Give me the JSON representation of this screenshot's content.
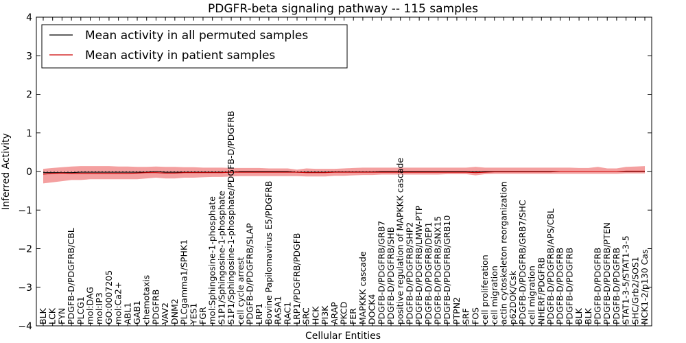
{
  "chart_data": {
    "type": "line",
    "title": "PDGFR-beta signaling pathway -- 115 samples",
    "xlabel": "Cellular Entities",
    "ylabel": "Inferred Activity",
    "ylim": [
      -4,
      4
    ],
    "yticks": [
      -4,
      -3,
      -2,
      -1,
      0,
      1,
      2,
      3,
      4
    ],
    "legend_position": "top-left",
    "grid": false,
    "categories": [
      "BLK",
      "LCK",
      "FYN",
      "PDGFB-D/PDGFRB/CBL",
      "PLCG1",
      "mol:DAG",
      "mol:IP3",
      "GO:0007205",
      "mol:Ca2+",
      "ABL1",
      "GAB1",
      "chemotaxis",
      "PDGFRB",
      "VAV2",
      "DNM2",
      "PLCgamma1/SPHK1",
      "YES1",
      "FGR",
      "mol:Sphingosine-1-phosphate",
      "S1P1/Sphingosine-1-phosphate",
      "S1P1/Sphingosine-1-phosphate/PDGFB-D/PDGFRB",
      "cell cycle arrest",
      "PDGFB-D/PDGFRB/SLAP",
      "LRP1",
      "Bovine Papilomavirus E5/PDGFRB",
      "RASA1",
      "RAC1",
      "LRP1/PDGFRB/PDGFB",
      "SRC",
      "HCK",
      "PI3K",
      "ARAP",
      "PKCD",
      "FER",
      "MAPKKK cascade",
      "DOCK4",
      "PDGFB-D/PDGFRB/GRB7",
      "PDGFB-D/PDGFRB/SHB",
      "positive regulation of MAPKKK cascade",
      "PDGFB-D/PDGFRB/SHP2",
      "PDGFB-D/PDGFRB/LMW-PTP",
      "PDGFB-D/PDGFRB/DEP1",
      "PDGFB-D/PDGFRB/SNX15",
      "PDGFB-D/PDGFRB/GRB10",
      "PTPN2",
      "SRF",
      "FOS",
      "cell proliferation",
      "cell migration",
      "actin cytoskeleton reorganization",
      "p62DOK/Csk",
      "PDGFB-D/PDGFRB/GRB7/SHC",
      "cell migration",
      "NHERF/PDGFRB",
      "PDGFB-D/PDGFRB/APS/CBL",
      "PDGFB-D/PDGFRB",
      "PDGFB-D/PDGFRB",
      "BLK",
      "BLK",
      "PDGFB-D/PDGFRB",
      "PDGFB-D/PDGFRB/PTEN",
      "PDGFB-D/PDGFRB",
      "STAT1-3-5/STAT1-3-5",
      "SHC/Grb2/SOS1",
      "NCK1-2/p130 Cas"
    ],
    "series": [
      {
        "name": "Mean activity in all permuted samples",
        "color": "#000000",
        "values": [
          -0.03,
          -0.03,
          -0.03,
          -0.03,
          -0.02,
          -0.02,
          -0.02,
          -0.02,
          -0.02,
          -0.02,
          -0.02,
          -0.02,
          0.0,
          -0.02,
          -0.02,
          -0.02,
          -0.02,
          -0.02,
          -0.02,
          -0.02,
          -0.02,
          0.0,
          0.0,
          0.0,
          0.0,
          0.0,
          0.0,
          -0.02,
          -0.02,
          -0.02,
          -0.02,
          -0.01,
          -0.01,
          -0.01,
          -0.01,
          -0.01,
          0.0,
          0.0,
          0.0,
          0.0,
          0.0,
          0.0,
          0.0,
          0.0,
          0.0,
          0.0,
          -0.01,
          0.0,
          0.0,
          0.0,
          0.0,
          0.0,
          0.0,
          0.0,
          0.0,
          0.0,
          0.0,
          0.0,
          0.0,
          0.0,
          0.0,
          0.0,
          0.0,
          0.0,
          0.0
        ]
      },
      {
        "name": "Mean activity in patient samples",
        "color": "#cc0000",
        "values": [
          -0.07,
          -0.05,
          -0.04,
          -0.05,
          -0.05,
          -0.05,
          -0.05,
          -0.05,
          -0.05,
          -0.05,
          -0.04,
          -0.03,
          -0.03,
          -0.04,
          -0.04,
          -0.03,
          -0.03,
          -0.03,
          -0.03,
          -0.03,
          -0.02,
          -0.02,
          -0.02,
          -0.02,
          -0.02,
          -0.02,
          -0.02,
          -0.02,
          -0.03,
          -0.03,
          -0.03,
          -0.02,
          -0.02,
          -0.02,
          -0.02,
          -0.02,
          -0.02,
          -0.02,
          -0.02,
          -0.02,
          -0.02,
          -0.02,
          -0.02,
          -0.02,
          -0.02,
          -0.02,
          -0.03,
          -0.02,
          -0.01,
          -0.01,
          -0.01,
          -0.01,
          -0.01,
          -0.01,
          -0.01,
          0.0,
          0.0,
          0.0,
          0.0,
          0.0,
          0.0,
          0.0,
          0.01,
          0.01,
          0.01
        ],
        "band": {
          "color": "#f08080",
          "upper": [
            0.07,
            0.09,
            0.11,
            0.13,
            0.14,
            0.14,
            0.14,
            0.14,
            0.13,
            0.13,
            0.12,
            0.12,
            0.13,
            0.12,
            0.12,
            0.11,
            0.11,
            0.1,
            0.1,
            0.1,
            0.09,
            0.09,
            0.09,
            0.09,
            0.08,
            0.08,
            0.08,
            0.05,
            0.08,
            0.07,
            0.07,
            0.07,
            0.08,
            0.09,
            0.1,
            0.1,
            0.1,
            0.1,
            0.1,
            0.1,
            0.1,
            0.1,
            0.1,
            0.1,
            0.1,
            0.1,
            0.12,
            0.1,
            0.1,
            0.1,
            0.1,
            0.1,
            0.1,
            0.1,
            0.1,
            0.1,
            0.1,
            0.09,
            0.09,
            0.12,
            0.08,
            0.08,
            0.12,
            0.13,
            0.14
          ],
          "lower": [
            -0.31,
            -0.28,
            -0.25,
            -0.22,
            -0.22,
            -0.2,
            -0.2,
            -0.2,
            -0.2,
            -0.2,
            -0.2,
            -0.18,
            -0.16,
            -0.18,
            -0.18,
            -0.16,
            -0.16,
            -0.15,
            -0.14,
            -0.14,
            -0.13,
            -0.12,
            -0.12,
            -0.12,
            -0.12,
            -0.12,
            -0.12,
            -0.12,
            -0.13,
            -0.13,
            -0.13,
            -0.11,
            -0.11,
            -0.1,
            -0.09,
            -0.09,
            -0.08,
            -0.08,
            -0.08,
            -0.08,
            -0.08,
            -0.08,
            -0.08,
            -0.07,
            -0.07,
            -0.07,
            -0.1,
            -0.07,
            -0.06,
            -0.06,
            -0.06,
            -0.06,
            -0.06,
            -0.06,
            -0.06,
            -0.06,
            -0.06,
            -0.06,
            -0.06,
            -0.06,
            -0.06,
            -0.06,
            -0.05,
            -0.05,
            -0.05
          ]
        }
      }
    ]
  }
}
